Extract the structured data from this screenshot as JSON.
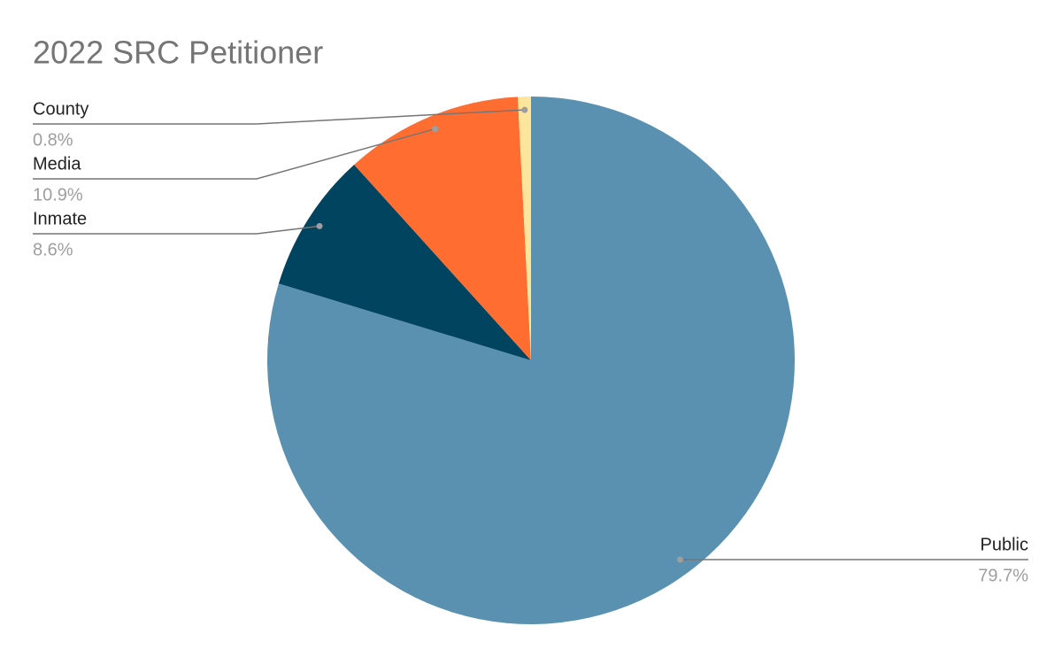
{
  "chart_data": {
    "type": "pie",
    "title": "2022 SRC Petitioner",
    "categories": [
      "Public",
      "Inmate",
      "Media",
      "County"
    ],
    "values": [
      79.7,
      8.6,
      10.9,
      0.8
    ],
    "value_labels": [
      "79.7%",
      "8.6%",
      "10.9%",
      "0.8%"
    ],
    "colors": [
      "#5a91b0",
      "#00445f",
      "#ff6d31",
      "#fde59b"
    ]
  }
}
